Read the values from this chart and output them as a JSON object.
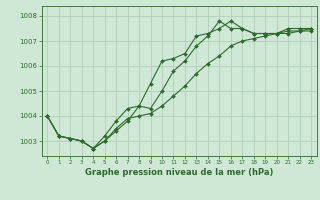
{
  "background_color": "#cfe8d5",
  "grid_color": "#b0cfb8",
  "line_color": "#2d6a2d",
  "title": "Graphe pression niveau de la mer (hPa)",
  "xlim": [
    -0.5,
    23.5
  ],
  "ylim": [
    1002.4,
    1008.4
  ],
  "xticks": [
    0,
    1,
    2,
    3,
    4,
    5,
    6,
    7,
    8,
    9,
    10,
    11,
    12,
    13,
    14,
    15,
    16,
    17,
    18,
    19,
    20,
    21,
    22,
    23
  ],
  "yticks": [
    1003,
    1004,
    1005,
    1006,
    1007,
    1008
  ],
  "series1_x": [
    0,
    1,
    2,
    3,
    4,
    5,
    6,
    7,
    8,
    9,
    10,
    11,
    12,
    13,
    14,
    15,
    16,
    17,
    18,
    19,
    20,
    21,
    22,
    23
  ],
  "series1_y": [
    1004.0,
    1003.2,
    1003.1,
    1003.0,
    1002.7,
    1003.0,
    1003.4,
    1003.8,
    1004.4,
    1005.3,
    1006.2,
    1006.3,
    1006.5,
    1007.2,
    1007.3,
    1007.5,
    1007.8,
    1007.5,
    1007.3,
    1007.3,
    1007.3,
    1007.3,
    1007.4,
    1007.4
  ],
  "series2_x": [
    0,
    1,
    2,
    3,
    4,
    5,
    6,
    7,
    8,
    9,
    10,
    11,
    12,
    13,
    14,
    15,
    16,
    17,
    18,
    19,
    20,
    21,
    22,
    23
  ],
  "series2_y": [
    1004.0,
    1003.2,
    1003.1,
    1003.0,
    1002.7,
    1003.2,
    1003.8,
    1004.3,
    1004.4,
    1004.3,
    1005.0,
    1005.8,
    1006.2,
    1006.8,
    1007.2,
    1007.8,
    1007.5,
    1007.5,
    1007.3,
    1007.3,
    1007.3,
    1007.5,
    1007.5,
    1007.5
  ],
  "series3_x": [
    0,
    1,
    2,
    3,
    4,
    5,
    6,
    7,
    8,
    9,
    10,
    11,
    12,
    13,
    14,
    15,
    16,
    17,
    18,
    19,
    20,
    21,
    22,
    23
  ],
  "series3_y": [
    1004.0,
    1003.2,
    1003.1,
    1003.0,
    1002.7,
    1003.0,
    1003.5,
    1003.9,
    1004.0,
    1004.1,
    1004.4,
    1004.8,
    1005.2,
    1005.7,
    1006.1,
    1006.4,
    1006.8,
    1007.0,
    1007.1,
    1007.2,
    1007.3,
    1007.4,
    1007.4,
    1007.5
  ],
  "ylabel_fontsize": 5.5,
  "xlabel_fontsize": 5.5,
  "title_fontsize": 6.0
}
